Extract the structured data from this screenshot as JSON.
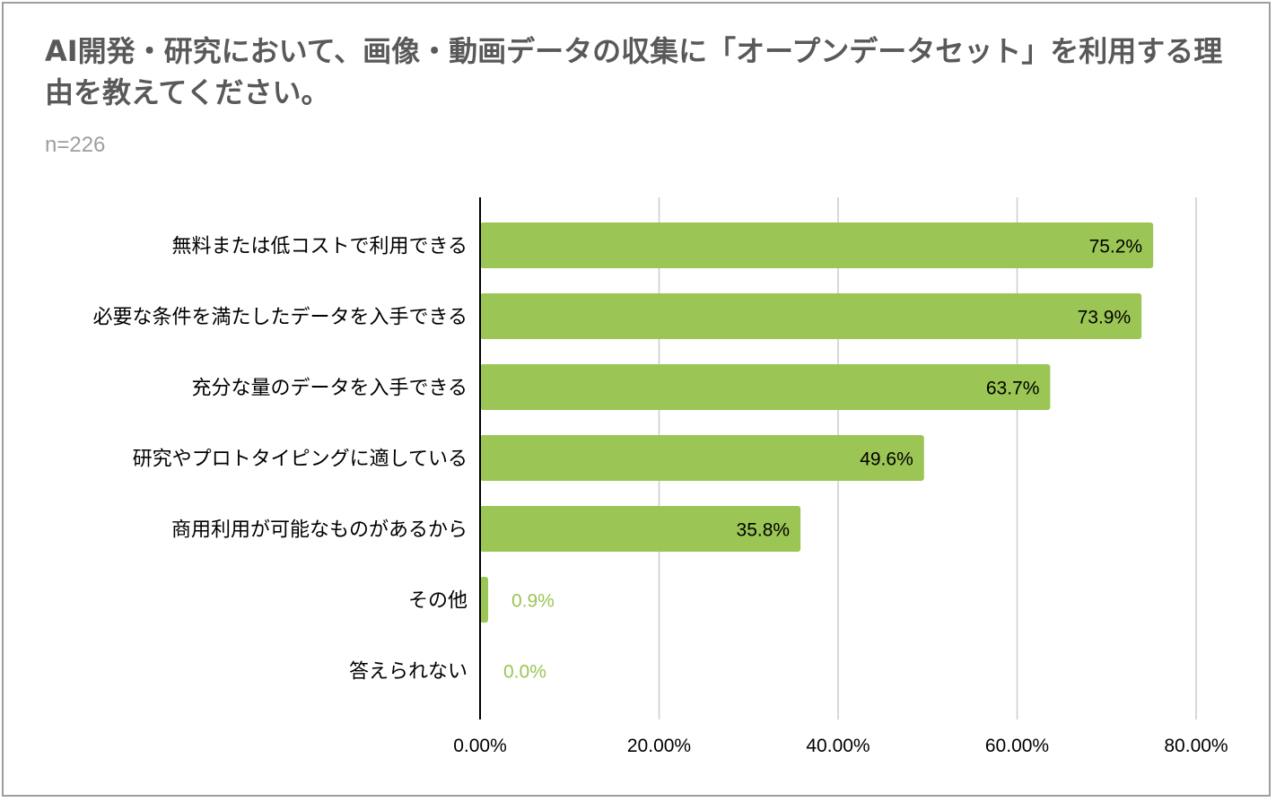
{
  "title": "AI開発・研究において、画像・動画データの収集に「オープンデータセット」を利用する理由を教えてください。",
  "subtitle": "n=226",
  "colors": {
    "bar": "#9bc554",
    "grid": "#cccccc",
    "axis": "#000000",
    "inside_label": "#000000",
    "outside_label": "#9bc554"
  },
  "chart_data": {
    "type": "bar",
    "orientation": "horizontal",
    "categories": [
      "無料または低コストで利用できる",
      "必要な条件を満たしたデータを入手できる",
      "充分な量のデータを入手できる",
      "研究やプロトタイピングに適している",
      "商用利用が可能なものがあるから",
      "その他",
      "答えられない"
    ],
    "values": [
      75.2,
      73.9,
      63.7,
      49.6,
      35.8,
      0.9,
      0.0
    ],
    "data_labels": [
      "75.2%",
      "73.9%",
      "63.7%",
      "49.6%",
      "35.8%",
      "0.9%",
      "0.0%"
    ],
    "xlim": [
      0,
      80
    ],
    "xticks": [
      0,
      20,
      40,
      60,
      80
    ],
    "xtick_labels": [
      "0.00%",
      "20.00%",
      "40.00%",
      "60.00%",
      "80.00%"
    ],
    "grid": true,
    "legend": "none"
  }
}
